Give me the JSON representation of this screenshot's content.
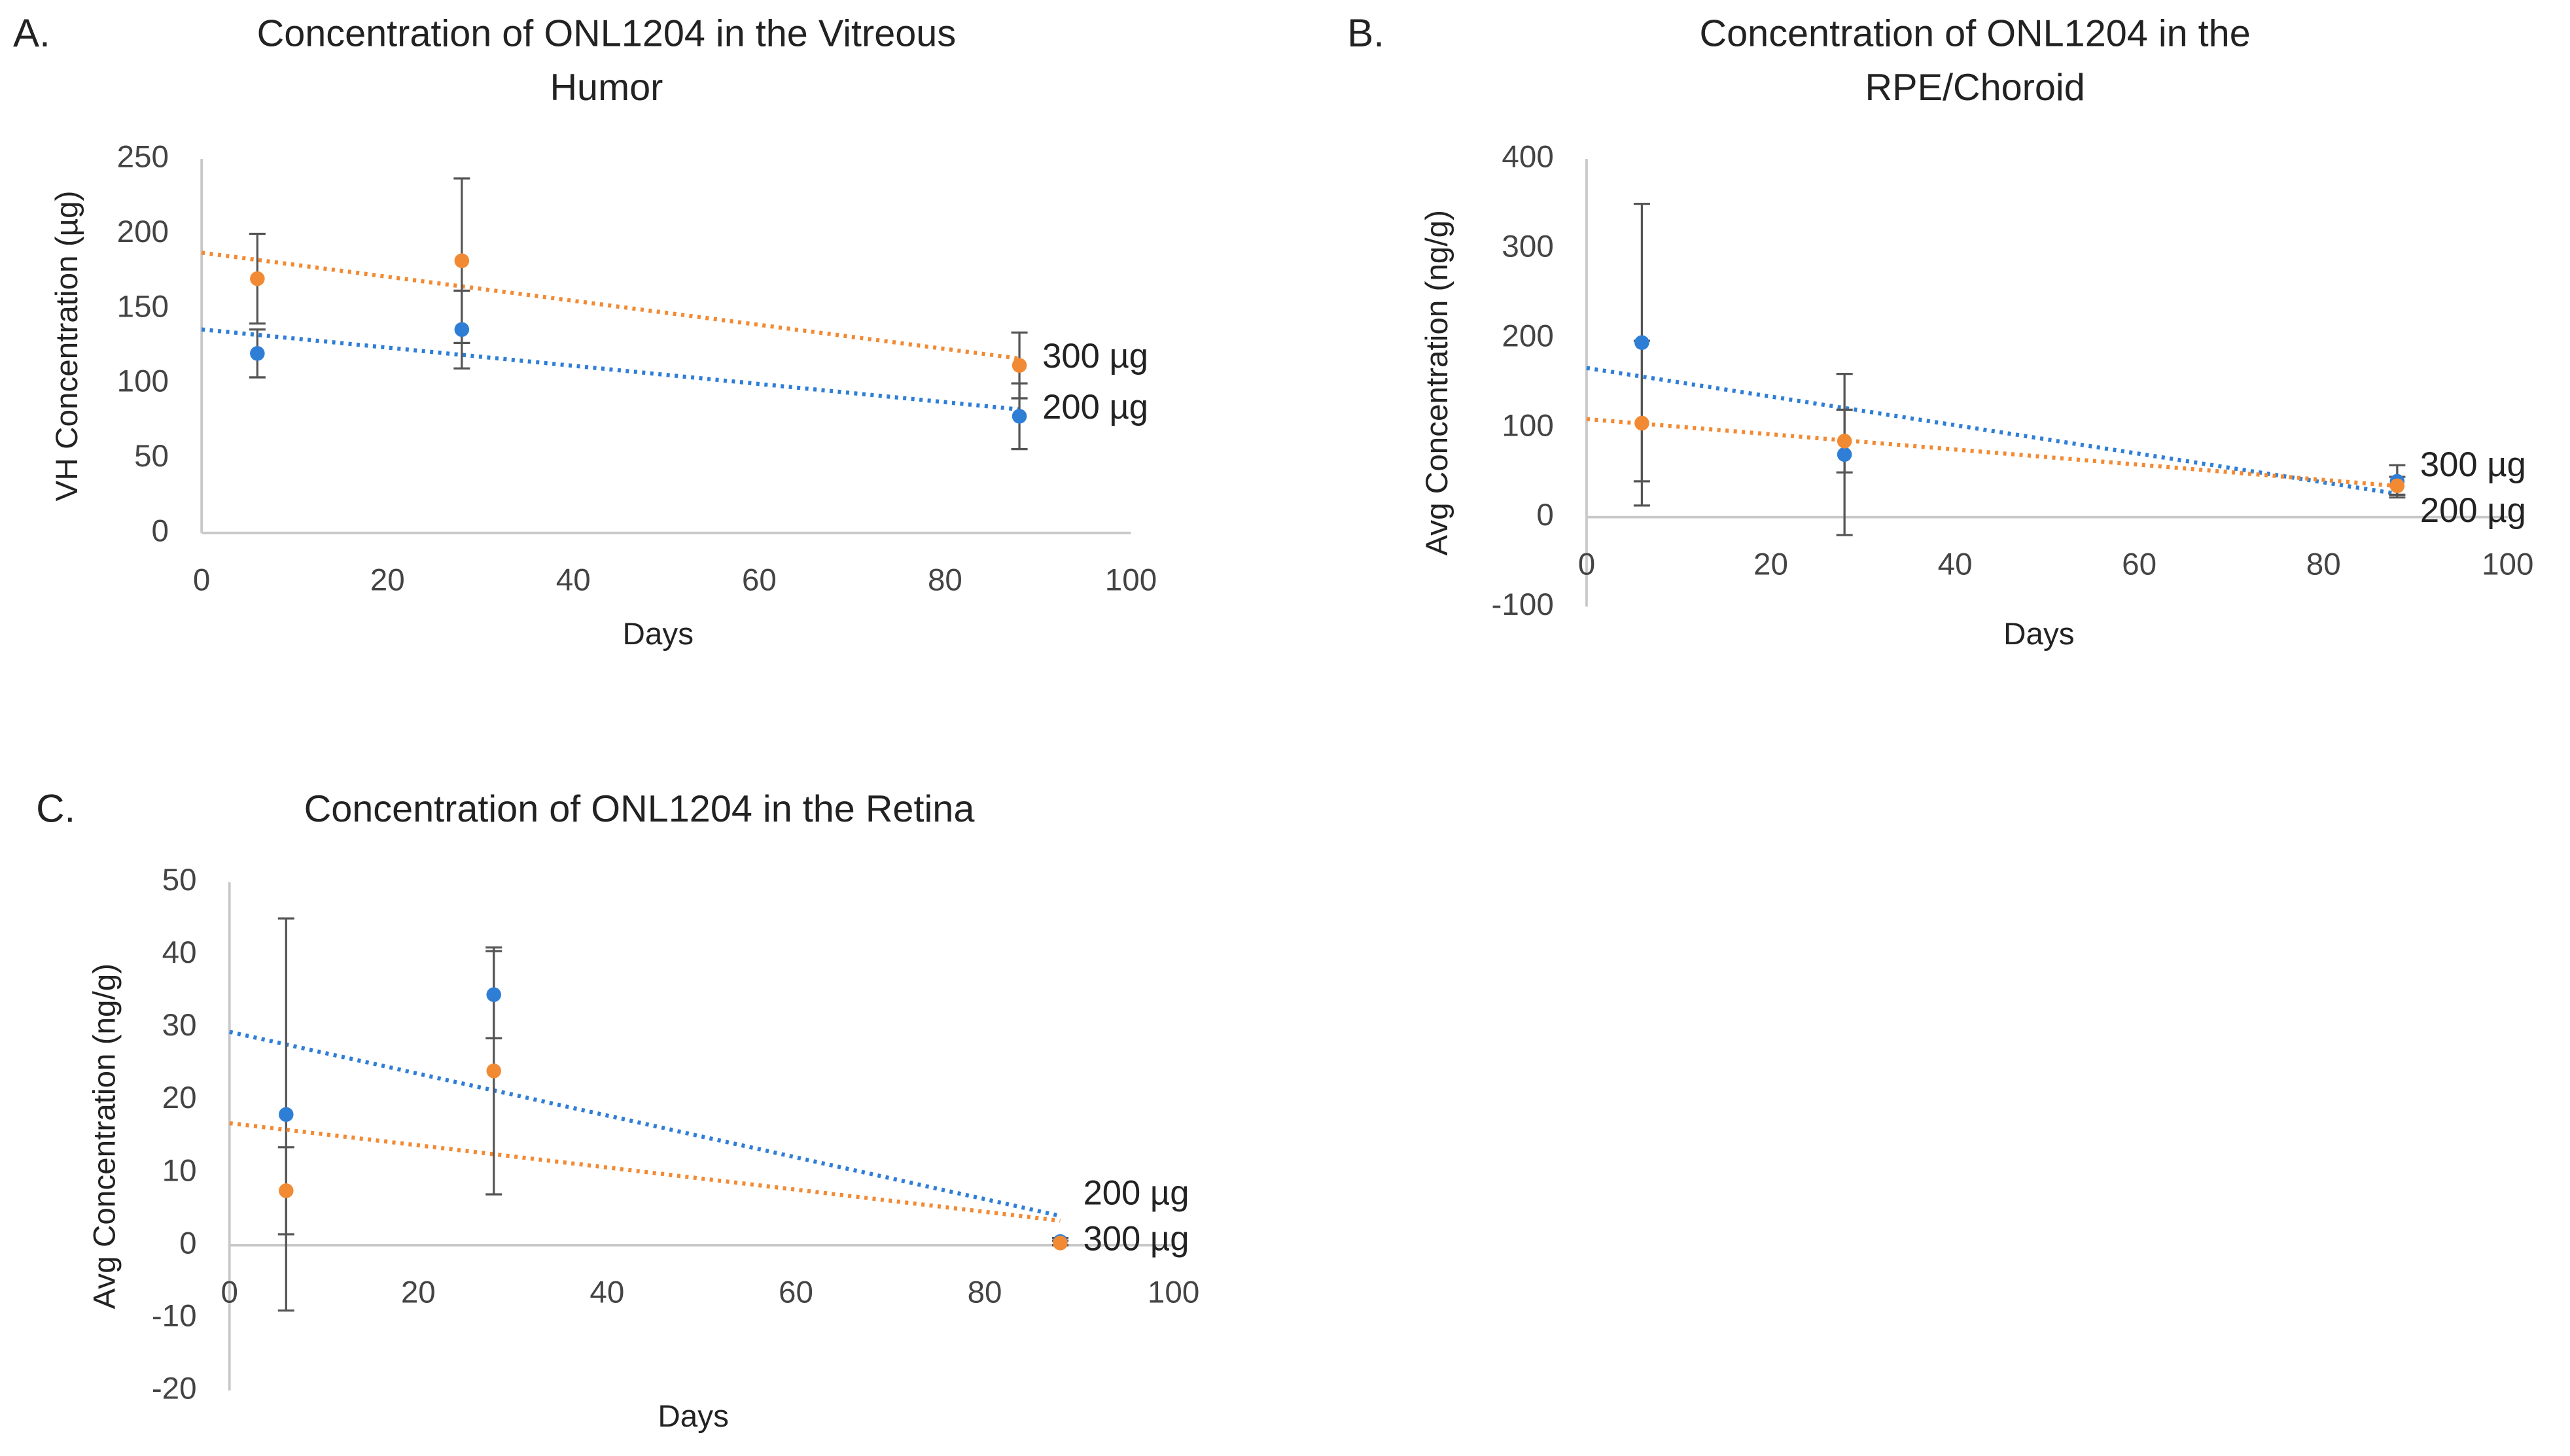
{
  "chart_data": [
    {
      "type": "scatter",
      "panel": "A.",
      "title": [
        "Concentration of ONL1204 in the Vitreous",
        "Humor"
      ],
      "x_label": "Days",
      "y_label": "VH Concentration (µg)",
      "x": [
        6,
        28,
        88
      ],
      "xlim": [
        0,
        100
      ],
      "xticks": [
        0,
        20,
        40,
        60,
        80,
        100
      ],
      "ylim": [
        0,
        250
      ],
      "yticks": [
        0,
        50,
        100,
        150,
        200,
        250
      ],
      "trendline": true,
      "series": [
        {
          "name": "200 µg",
          "color": "#2f7ed6",
          "values": [
            120,
            136,
            78
          ],
          "errors": [
            16,
            26,
            22
          ]
        },
        {
          "name": "300 µg",
          "color": "#f28a34",
          "values": [
            170,
            182,
            112
          ],
          "errors": [
            30,
            55,
            22
          ]
        }
      ]
    },
    {
      "type": "scatter",
      "panel": "B.",
      "title": [
        "Concentration of ONL1204 in the",
        "RPE/Choroid"
      ],
      "x_label": "Days",
      "y_label": "Avg Concentration (ng/g)",
      "x": [
        6,
        28,
        88
      ],
      "xlim": [
        0,
        100
      ],
      "xticks": [
        0,
        20,
        40,
        60,
        80,
        100
      ],
      "ylim": [
        -100,
        400
      ],
      "yticks": [
        -100,
        0,
        100,
        200,
        300,
        400
      ],
      "trendline": true,
      "series": [
        {
          "name": "200 µg",
          "color": "#2f7ed6",
          "values": [
            195,
            70,
            40
          ],
          "errors": [
            155,
            90,
            18
          ]
        },
        {
          "name": "300 µg",
          "color": "#f28a34",
          "values": [
            105,
            85,
            35
          ],
          "errors": [
            92,
            35,
            10
          ]
        }
      ]
    },
    {
      "type": "scatter",
      "panel": "C.",
      "title": [
        "Concentration of ONL1204 in the Retina"
      ],
      "x_label": "Days",
      "y_label": "Avg Concentration (ng/g)",
      "x": [
        6,
        28,
        88
      ],
      "xlim": [
        0,
        100
      ],
      "xticks": [
        0,
        20,
        40,
        60,
        80,
        100
      ],
      "ylim": [
        -20,
        50
      ],
      "yticks": [
        -20,
        -10,
        0,
        10,
        20,
        30,
        40,
        50
      ],
      "trendline": true,
      "series": [
        {
          "name": "200 µg",
          "color": "#2f7ed6",
          "values": [
            18,
            34.5,
            0.5
          ],
          "errors": [
            27,
            6,
            0.5
          ]
        },
        {
          "name": "300 µg",
          "color": "#f28a34",
          "values": [
            7.5,
            24,
            0.3
          ],
          "errors": [
            6,
            17,
            0.3
          ]
        }
      ]
    }
  ]
}
